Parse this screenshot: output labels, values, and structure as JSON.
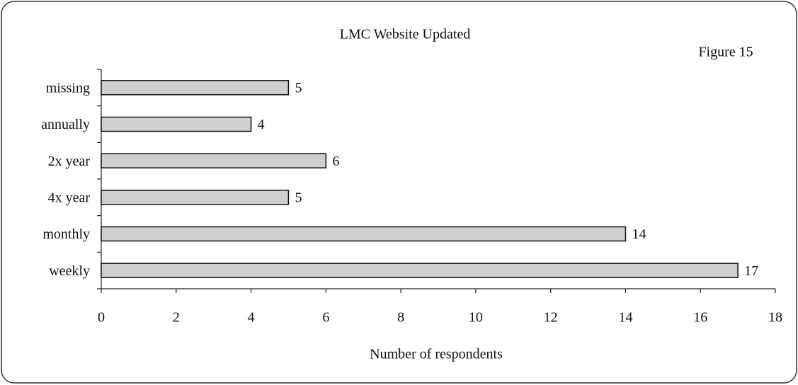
{
  "chart_data": {
    "type": "bar",
    "orientation": "horizontal",
    "title": "LMC Website Updated",
    "annotation": "Figure 15",
    "x_label": "Number of respondents",
    "categories": [
      "missing",
      "annually",
      "2x year",
      "4x year",
      "monthly",
      "weekly"
    ],
    "values": [
      5,
      4,
      6,
      5,
      14,
      17
    ],
    "color": "#cfcfcf",
    "xlim": [
      0,
      18
    ],
    "xticks": [
      0,
      2,
      4,
      6,
      8,
      10,
      12,
      14,
      16,
      18
    ],
    "grid": false
  }
}
